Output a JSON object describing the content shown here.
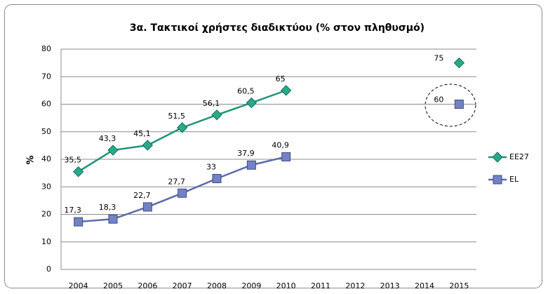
{
  "chart_data": {
    "type": "line",
    "title": "3α. Τακτικοί χρήστες διαδικτύου (% στον πληθυσμό)",
    "y_label": "%",
    "categories": [
      "2004",
      "2005",
      "2006",
      "2007",
      "2008",
      "2009",
      "2010",
      "2011",
      "2012",
      "2013",
      "2014",
      "2015"
    ],
    "series": [
      {
        "name": "EE27",
        "color": "#1f9477",
        "marker": "diamond",
        "values": [
          35.5,
          43.3,
          45.1,
          51.5,
          56.1,
          60.5,
          65,
          null,
          null,
          null,
          null,
          75
        ],
        "value_labels": [
          "35,5",
          "43,3",
          "45,1",
          "51,5",
          "56,1",
          "60,5",
          "65",
          null,
          null,
          null,
          null,
          "75"
        ]
      },
      {
        "name": "EL",
        "color": "#5b6bab",
        "marker": "square",
        "values": [
          17.3,
          18.3,
          22.7,
          27.7,
          33,
          37.9,
          40.9,
          null,
          null,
          null,
          null,
          60
        ],
        "value_labels": [
          "17,3",
          "18,3",
          "22,7",
          "27,7",
          "33",
          "37,9",
          "40,9",
          null,
          null,
          null,
          null,
          "60"
        ]
      }
    ],
    "ylim": [
      0,
      80
    ],
    "yticks": [
      0,
      10,
      20,
      30,
      40,
      50,
      60,
      70,
      80
    ],
    "grid": true,
    "legend": "right"
  }
}
